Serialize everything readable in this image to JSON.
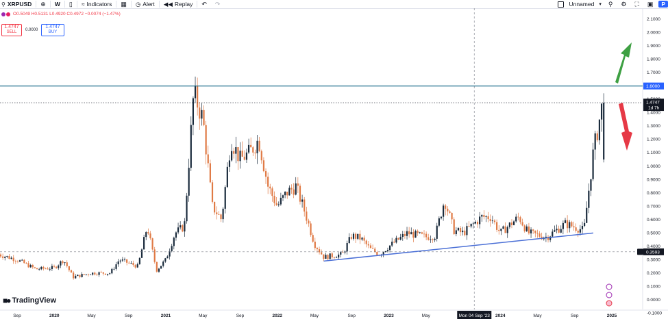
{
  "toolbar": {
    "symbol": "XRPUSD",
    "interval": "W",
    "indicators_label": "Indicators",
    "alert_label": "Alert",
    "replay_label": "Replay",
    "layout_name": "Unnamed",
    "publish_label": "P"
  },
  "quote": {
    "ohlc_text": "O0.5049 H0.5131 L0.4920 C0.4972 −0.0074 (−1.47%)",
    "sell_price": "1.4747",
    "sell_label": "SELL",
    "spread": "0.0000",
    "buy_price": "1.4747",
    "buy_label": "BUY"
  },
  "brand": {
    "name": "TradingView"
  },
  "crosshair_date": "Mon 04 Sep '23",
  "price_tags": {
    "horizontal_line": "1.6000",
    "last_price": "1.4747",
    "countdown": "1d 7h",
    "lower_line": "0.3593"
  },
  "colors": {
    "up": "#26a69a",
    "down": "#ef5350",
    "bull_candle": "#1a2b3c",
    "bear_candle": "#e07a45",
    "trendline": "#4a6fd6",
    "hline": "#1f6f8b",
    "arrow_up": "#3ea043",
    "arrow_down": "#e63946"
  },
  "chart_data": {
    "type": "candlestick",
    "title": "",
    "xlabel": "",
    "ylabel": "",
    "y_ticks": [
      "2.1000",
      "2.0000",
      "1.9000",
      "1.8000",
      "1.7000",
      "1.5000",
      "1.4000",
      "1.3000",
      "1.2000",
      "1.1000",
      "1.0000",
      "0.9000",
      "0.8000",
      "0.7000",
      "0.6000",
      "0.5000",
      "0.4000",
      "0.3000",
      "0.2000",
      "0.1000",
      "0.0000",
      "-0.1000"
    ],
    "ylim": [
      -0.1,
      2.1
    ],
    "x_ticks": [
      "Sep",
      "2020",
      "May",
      "Sep",
      "2021",
      "May",
      "Sep",
      "2022",
      "May",
      "Sep",
      "2023",
      "May",
      "Sep",
      "2024",
      "May",
      "Sep",
      "2025"
    ],
    "x_tick_dates": [
      "2019-09",
      "2020-01",
      "2020-05",
      "2020-09",
      "2021-01",
      "2021-05",
      "2021-09",
      "2022-01",
      "2022-05",
      "2022-09",
      "2023-01",
      "2023-05",
      "2023-09",
      "2024-01",
      "2024-05",
      "2024-09",
      "2025-01"
    ],
    "x_range": [
      "2019-07",
      "2025-03"
    ],
    "approximate_closes": [
      {
        "date": "2019-07",
        "close": 0.34
      },
      {
        "date": "2019-09",
        "close": 0.3
      },
      {
        "date": "2019-11",
        "close": 0.23
      },
      {
        "date": "2020-01",
        "close": 0.24
      },
      {
        "date": "2020-02",
        "close": 0.3
      },
      {
        "date": "2020-03",
        "close": 0.17
      },
      {
        "date": "2020-05",
        "close": 0.2
      },
      {
        "date": "2020-07",
        "close": 0.2
      },
      {
        "date": "2020-08",
        "close": 0.3
      },
      {
        "date": "2020-10",
        "close": 0.25
      },
      {
        "date": "2020-11",
        "close": 0.55
      },
      {
        "date": "2020-12",
        "close": 0.22
      },
      {
        "date": "2021-01",
        "close": 0.3
      },
      {
        "date": "2021-02",
        "close": 0.5
      },
      {
        "date": "2021-03",
        "close": 0.55
      },
      {
        "date": "2021-04",
        "close": 1.55
      },
      {
        "date": "2021-05",
        "close": 1.35
      },
      {
        "date": "2021-06",
        "close": 0.7
      },
      {
        "date": "2021-07",
        "close": 0.6
      },
      {
        "date": "2021-08",
        "close": 1.2
      },
      {
        "date": "2021-09",
        "close": 1.05
      },
      {
        "date": "2021-10",
        "close": 1.1
      },
      {
        "date": "2021-11",
        "close": 1.2
      },
      {
        "date": "2021-12",
        "close": 0.85
      },
      {
        "date": "2022-01",
        "close": 0.7
      },
      {
        "date": "2022-02",
        "close": 0.8
      },
      {
        "date": "2022-03",
        "close": 0.85
      },
      {
        "date": "2022-04",
        "close": 0.65
      },
      {
        "date": "2022-05",
        "close": 0.42
      },
      {
        "date": "2022-06",
        "close": 0.32
      },
      {
        "date": "2022-08",
        "close": 0.34
      },
      {
        "date": "2022-09",
        "close": 0.48
      },
      {
        "date": "2022-10",
        "close": 0.46
      },
      {
        "date": "2022-11",
        "close": 0.38
      },
      {
        "date": "2022-12",
        "close": 0.34
      },
      {
        "date": "2023-01",
        "close": 0.4
      },
      {
        "date": "2023-03",
        "close": 0.5
      },
      {
        "date": "2023-05",
        "close": 0.47
      },
      {
        "date": "2023-06",
        "close": 0.48
      },
      {
        "date": "2023-07",
        "close": 0.75
      },
      {
        "date": "2023-08",
        "close": 0.52
      },
      {
        "date": "2023-09",
        "close": 0.5
      },
      {
        "date": "2023-11",
        "close": 0.62
      },
      {
        "date": "2023-12",
        "close": 0.62
      },
      {
        "date": "2024-01",
        "close": 0.5
      },
      {
        "date": "2024-03",
        "close": 0.62
      },
      {
        "date": "2024-04",
        "close": 0.5
      },
      {
        "date": "2024-06",
        "close": 0.47
      },
      {
        "date": "2024-08",
        "close": 0.57
      },
      {
        "date": "2024-10",
        "close": 0.52
      },
      {
        "date": "2024-11",
        "close": 1.1
      },
      {
        "date": "2024-12",
        "close": 1.47
      }
    ],
    "horizontal_lines": [
      1.6,
      0.3593
    ],
    "trendline": [
      {
        "date": "2022-06",
        "value": 0.29
      },
      {
        "date": "2024-11",
        "value": 0.5
      }
    ],
    "last_price": 1.4747
  }
}
